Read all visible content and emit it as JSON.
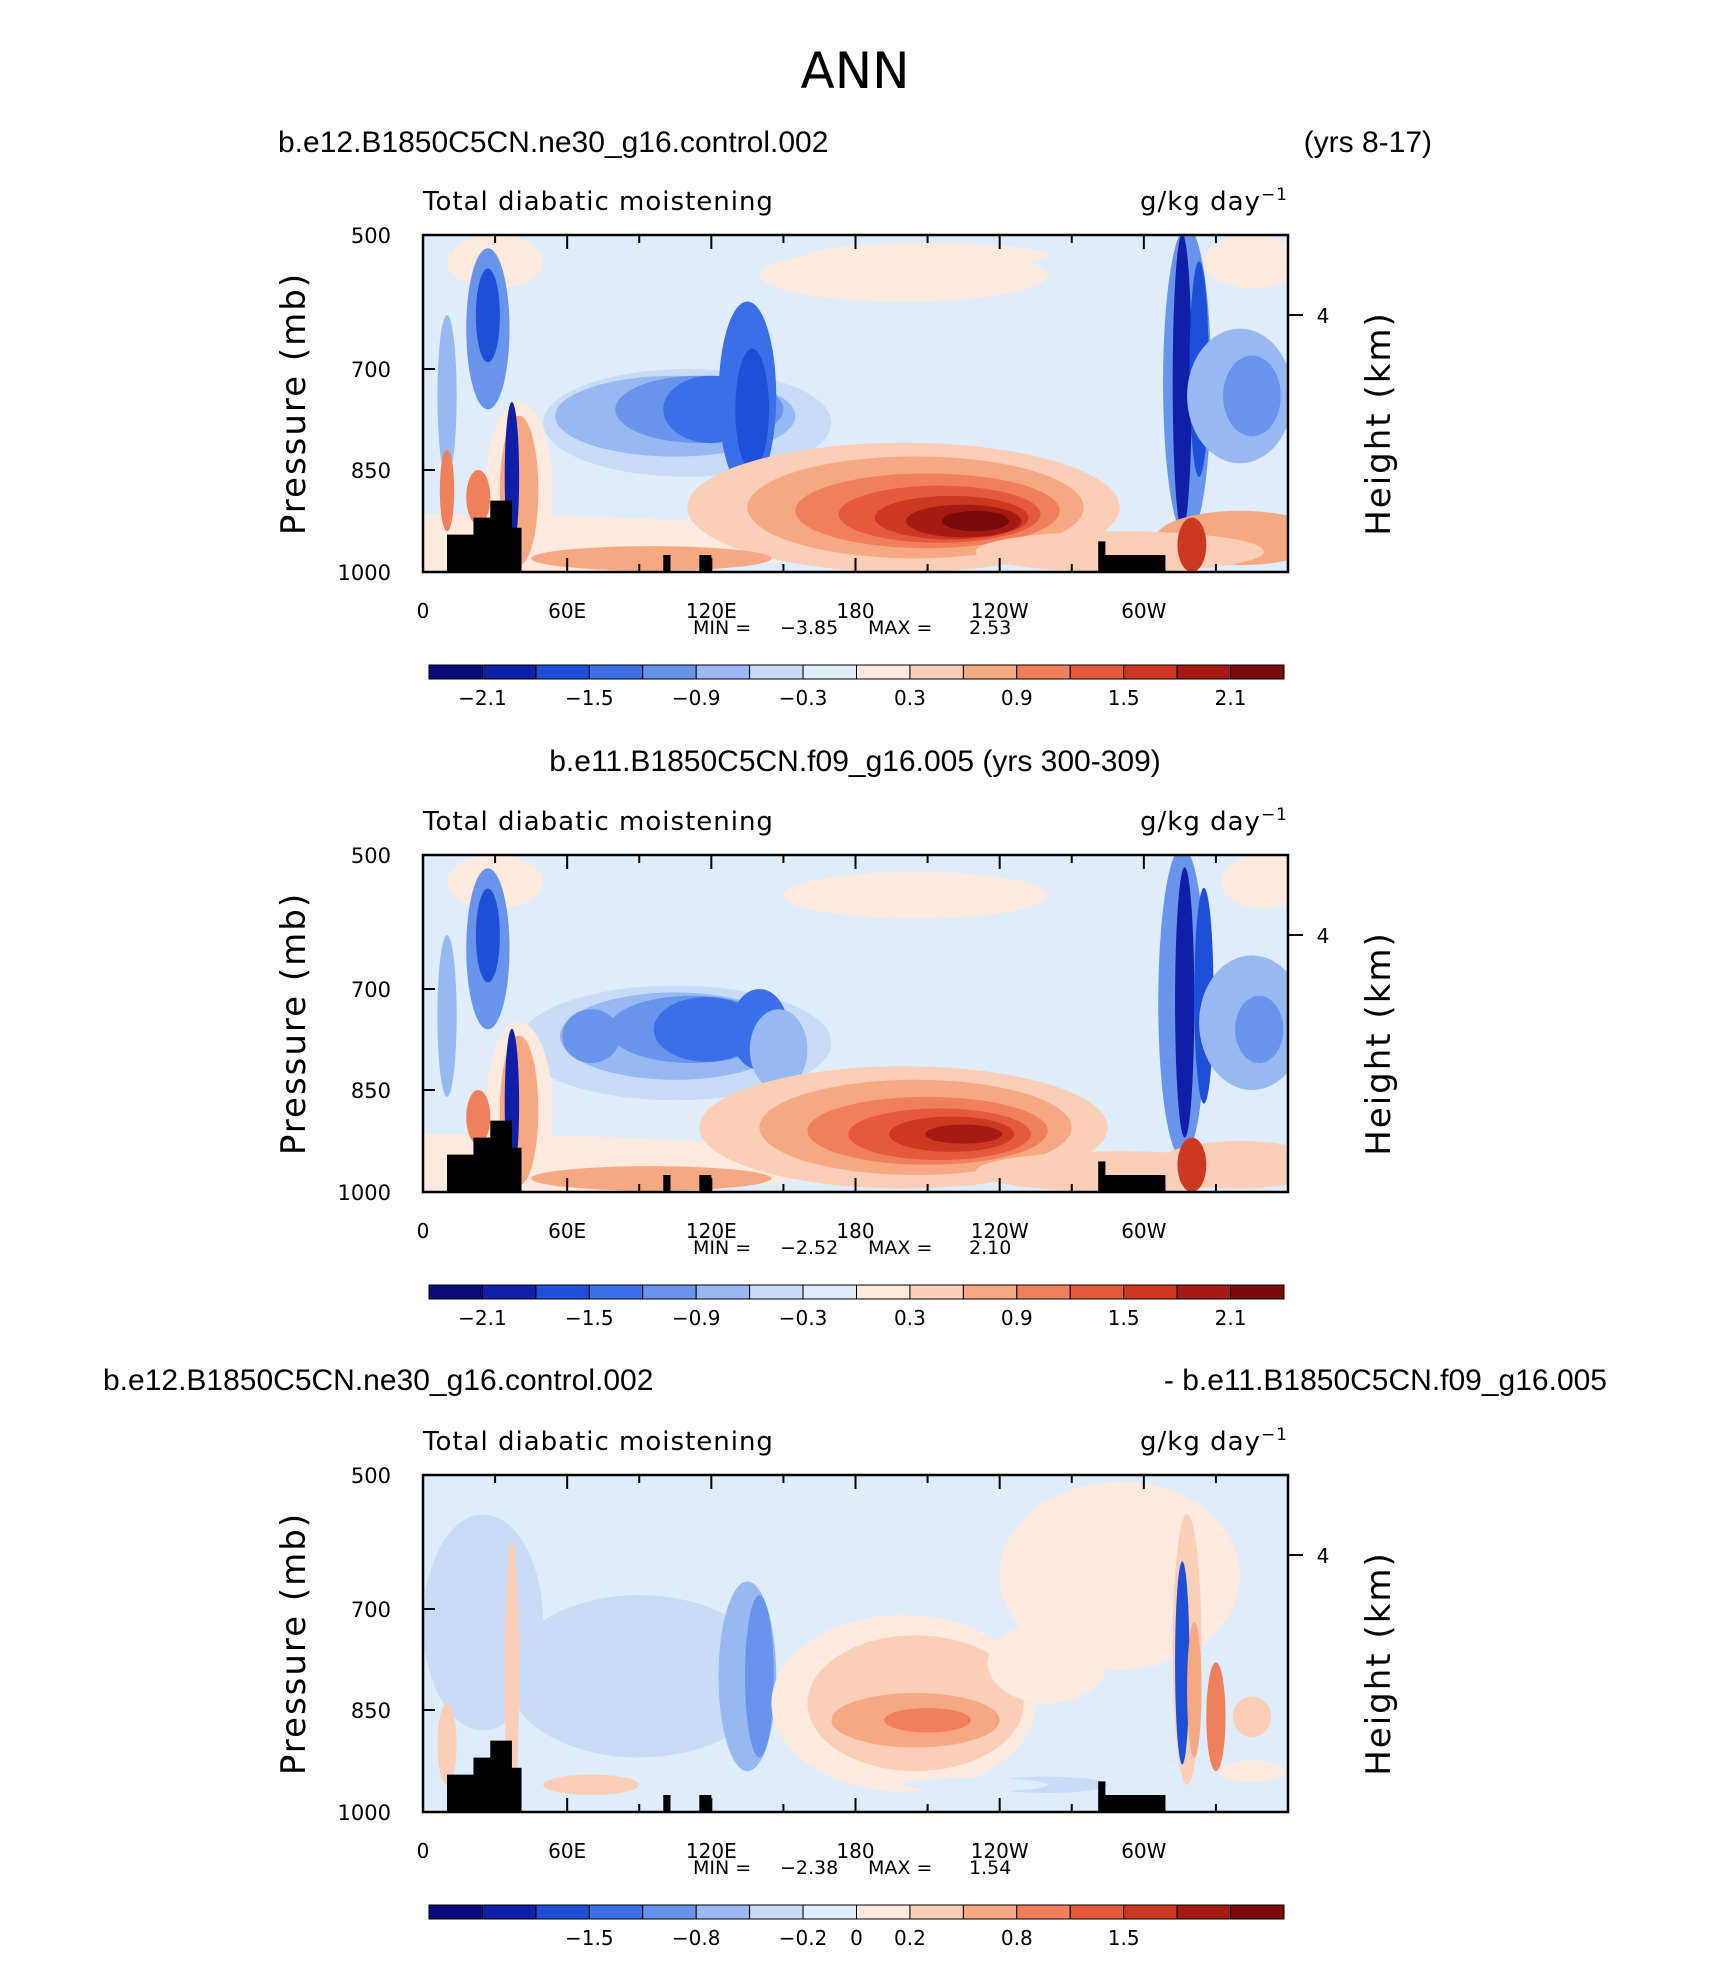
{
  "figure": {
    "title": "ANN"
  },
  "panel_text": {
    "case1": "b.e12.B1850C5CN.ne30_g16.control.002",
    "years1": "(yrs 8-17)",
    "case2": "b.e11.B1850C5CN.f09_g16.005 (yrs 300-309)",
    "diff_left": "b.e12.B1850C5CN.ne30_g16.control.002",
    "diff_right": "- b.e11.B1850C5CN.f09_g16.005"
  },
  "colormap": [
    "#0a0a7d",
    "#0f1fa8",
    "#1f4fd7",
    "#3a6fe8",
    "#6894ec",
    "#98b8f2",
    "#c8dcf8",
    "#dfecfb",
    "#fde9de",
    "#fbcfb7",
    "#f6a883",
    "#f07f5c",
    "#e55a3a",
    "#cc3821",
    "#a51b13",
    "#7a0909"
  ],
  "chart_data": [
    {
      "type": "heatmap",
      "subtitle_left": "Total diabatic moistening",
      "units": "g/kg day",
      "units_exp": "−1",
      "ylabel": "Pressure (mb)",
      "ylabel_right": "Height (km)",
      "y_ticks": [
        "500",
        "700",
        "850",
        "1000"
      ],
      "y_right_ticks": [
        "4"
      ],
      "x_ticks": [
        "0",
        "60E",
        "120E",
        "180",
        "120W",
        "60W"
      ],
      "min_label": "MIN =",
      "min": "−3.85",
      "max_label": "MAX =",
      "max": "2.53",
      "colorbar_ticks": [
        "−2.1",
        "−1.5",
        "−0.9",
        "−0.3",
        "0.3",
        "0.9",
        "1.5",
        "2.1"
      ]
    },
    {
      "type": "heatmap",
      "subtitle_left": "Total diabatic moistening",
      "units": "g/kg day",
      "units_exp": "−1",
      "ylabel": "Pressure (mb)",
      "ylabel_right": "Height (km)",
      "y_ticks": [
        "500",
        "700",
        "850",
        "1000"
      ],
      "y_right_ticks": [
        "4"
      ],
      "x_ticks": [
        "0",
        "60E",
        "120E",
        "180",
        "120W",
        "60W"
      ],
      "min_label": "MIN =",
      "min": "−2.52",
      "max_label": "MAX =",
      "max": "2.10",
      "colorbar_ticks": [
        "−2.1",
        "−1.5",
        "−0.9",
        "−0.3",
        "0.3",
        "0.9",
        "1.5",
        "2.1"
      ]
    },
    {
      "type": "heatmap",
      "subtitle_left": "Total diabatic moistening",
      "units": "g/kg day",
      "units_exp": "−1",
      "ylabel": "Pressure (mb)",
      "ylabel_right": "Height (km)",
      "y_ticks": [
        "500",
        "700",
        "850",
        "1000"
      ],
      "y_right_ticks": [
        "4"
      ],
      "x_ticks": [
        "0",
        "60E",
        "120E",
        "180",
        "120W",
        "60W"
      ],
      "min_label": "MIN =",
      "min": "−2.38",
      "max_label": "MAX =",
      "max": "1.54",
      "colorbar_ticks": [
        "−1.5",
        "−0.8",
        "−0.2",
        "0",
        "0.2",
        "0.8",
        "1.5"
      ]
    }
  ]
}
